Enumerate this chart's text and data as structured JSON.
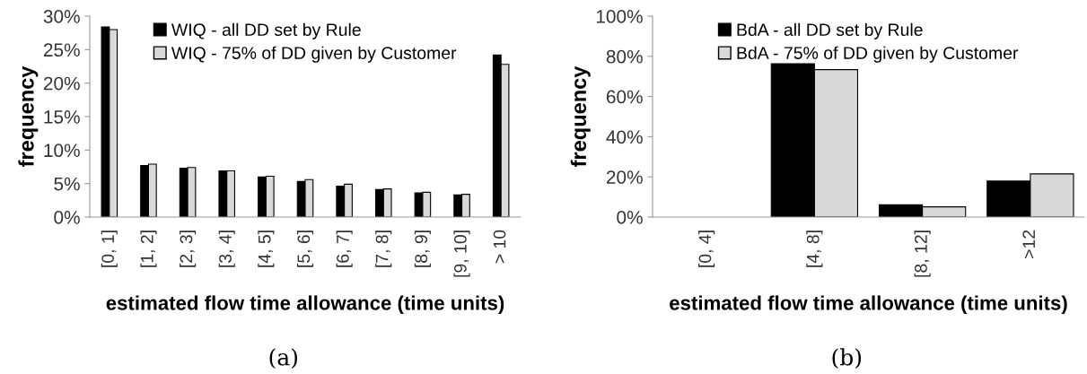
{
  "chart_data": [
    {
      "type": "bar",
      "xlabel": "estimated flow time allowance (time units)",
      "ylabel": "frequency",
      "annotations": [
        "(a)"
      ],
      "categories": [
        "[0, 1]",
        "[1, 2]",
        "[2, 3]",
        "[3, 4]",
        "[4, 5]",
        "[5, 6]",
        "[6, 7]",
        "[7, 8]",
        "[8, 9]",
        "[9, 10]",
        "> 10"
      ],
      "series": [
        {
          "name": "WIQ - all DD set by Rule",
          "color": "#000000",
          "values": [
            28.4,
            7.7,
            7.3,
            6.9,
            6.0,
            5.3,
            4.6,
            4.1,
            3.6,
            3.3,
            24.2
          ]
        },
        {
          "name": "WIQ - 75% of DD given by Customer",
          "color": "#d9d9d9",
          "values": [
            28.0,
            7.9,
            7.4,
            6.9,
            6.1,
            5.6,
            4.9,
            4.2,
            3.7,
            3.4,
            22.8
          ]
        }
      ],
      "ylim": [
        0,
        30
      ],
      "yticks": [
        {
          "value": 0,
          "label": "0%"
        },
        {
          "value": 5,
          "label": "5%"
        },
        {
          "value": 10,
          "label": "10%"
        },
        {
          "value": 15,
          "label": "15%"
        },
        {
          "value": 20,
          "label": "20%"
        },
        {
          "value": 25,
          "label": "25%"
        },
        {
          "value": 30,
          "label": "30%"
        }
      ],
      "legend": "top",
      "grid": false
    },
    {
      "type": "bar",
      "xlabel": "estimated flow time allowance (time units)",
      "ylabel": "frequency",
      "annotations": [
        "(b)"
      ],
      "categories": [
        "[0, 4]",
        "[4, 8]",
        "[8, 12]",
        ">12"
      ],
      "series": [
        {
          "name": "BdA - all DD set by Rule",
          "color": "#000000",
          "values": [
            0,
            76.3,
            6.1,
            17.9
          ]
        },
        {
          "name": "BdA - 75% of DD given by Customer",
          "color": "#d9d9d9",
          "values": [
            0,
            73.4,
            5.1,
            21.5
          ]
        }
      ],
      "ylim": [
        0,
        100
      ],
      "yticks": [
        {
          "value": 0,
          "label": "0%"
        },
        {
          "value": 20,
          "label": "20%"
        },
        {
          "value": 40,
          "label": "40%"
        },
        {
          "value": 60,
          "label": "60%"
        },
        {
          "value": 80,
          "label": "80%"
        },
        {
          "value": 100,
          "label": "100%"
        }
      ],
      "legend": "top",
      "grid": false
    }
  ]
}
